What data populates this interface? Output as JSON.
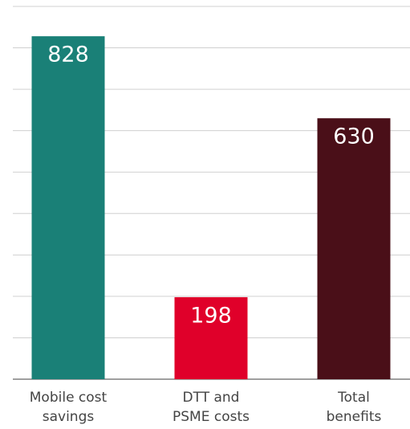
{
  "chart_data": {
    "type": "bar",
    "categories": [
      "Mobile cost\nsavings",
      "DTT and\nPSME costs",
      "Total\nbenefits"
    ],
    "values": [
      828,
      198,
      630
    ],
    "colors": [
      "#1a8077",
      "#e0002a",
      "#4a0f18"
    ],
    "ylim": [
      0,
      900
    ],
    "yticks": [
      0,
      100,
      200,
      300,
      400,
      500,
      600,
      700,
      800,
      900
    ],
    "grid": true
  }
}
